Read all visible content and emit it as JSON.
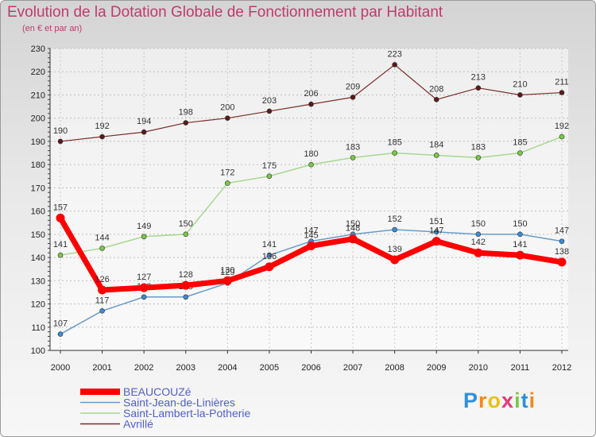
{
  "chart_data": {
    "type": "line",
    "title": "Evolution de la Dotation Globale de Fonctionnement par Habitant",
    "subtitle": "(en € et par an)",
    "x": [
      "2000",
      "2001",
      "2002",
      "2003",
      "2004",
      "2005",
      "2006",
      "2007",
      "2008",
      "2009",
      "2010",
      "2011",
      "2012"
    ],
    "ylim": [
      100,
      230
    ],
    "yticks": [
      100,
      110,
      120,
      130,
      140,
      150,
      160,
      170,
      180,
      190,
      200,
      210,
      220,
      230
    ],
    "grid": true,
    "legend_position": "bottom-left",
    "series": [
      {
        "name": "Avrillé",
        "color": "#7a2a2a",
        "marker": "#5a1a1a",
        "width": 1.2,
        "values": [
          190,
          192,
          194,
          198,
          200,
          203,
          206,
          209,
          223,
          208,
          213,
          210,
          211
        ],
        "labels": [
          "190",
          "192",
          "194",
          "198",
          "200",
          "203",
          "206",
          "209",
          "223",
          "208",
          "213",
          "210",
          "211"
        ]
      },
      {
        "name": "Saint-Lambert-la-Potherie",
        "color": "#a8d890",
        "marker": "#7ac943",
        "width": 1.5,
        "values": [
          141,
          144,
          149,
          150,
          172,
          175,
          180,
          183,
          185,
          184,
          183,
          185,
          192
        ],
        "labels": [
          "141",
          "144",
          "149",
          "150",
          "172",
          "175",
          "180",
          "183",
          "185",
          "184",
          "183",
          "185",
          "192"
        ]
      },
      {
        "name": "Saint-Jean-de-Linières",
        "color": "#6b9bc8",
        "marker": "#3f8ad0",
        "width": 1.5,
        "values": [
          107,
          117,
          123,
          123,
          129,
          141,
          147,
          150,
          152,
          151,
          150,
          150,
          147
        ],
        "labels": [
          "107",
          "117",
          "123",
          "123",
          "129",
          "141",
          "147",
          "150",
          "152",
          "151",
          "150",
          "150",
          "147"
        ]
      },
      {
        "name": "BEAUCOUZé",
        "color": "#ff0000",
        "marker": "#ff0000",
        "width": 7,
        "values": [
          157,
          126,
          127,
          128,
          130,
          136,
          145,
          148,
          139,
          147,
          142,
          141,
          138
        ],
        "labels": [
          "157",
          "126",
          "127",
          "128",
          "130",
          "136",
          "145",
          "148",
          "139",
          "147",
          "142",
          "141",
          "138"
        ]
      }
    ],
    "legend_order": [
      "BEAUCOUZé",
      "Saint-Jean-de-Linières",
      "Saint-Lambert-la-Potherie",
      "Avrillé"
    ]
  },
  "logo": {
    "text": "Proxiti",
    "letters": [
      {
        "ch": "P",
        "color": "#2f8fdc"
      },
      {
        "ch": "r",
        "color": "#f08a1c"
      },
      {
        "ch": "o",
        "color": "#e8c21a"
      },
      {
        "ch": "x",
        "color": "#e23a7a"
      },
      {
        "ch": "i",
        "color": "#7ac943"
      },
      {
        "ch": "t",
        "color": "#2f8fdc"
      },
      {
        "ch": "i",
        "color": "#f08a1c"
      }
    ]
  }
}
